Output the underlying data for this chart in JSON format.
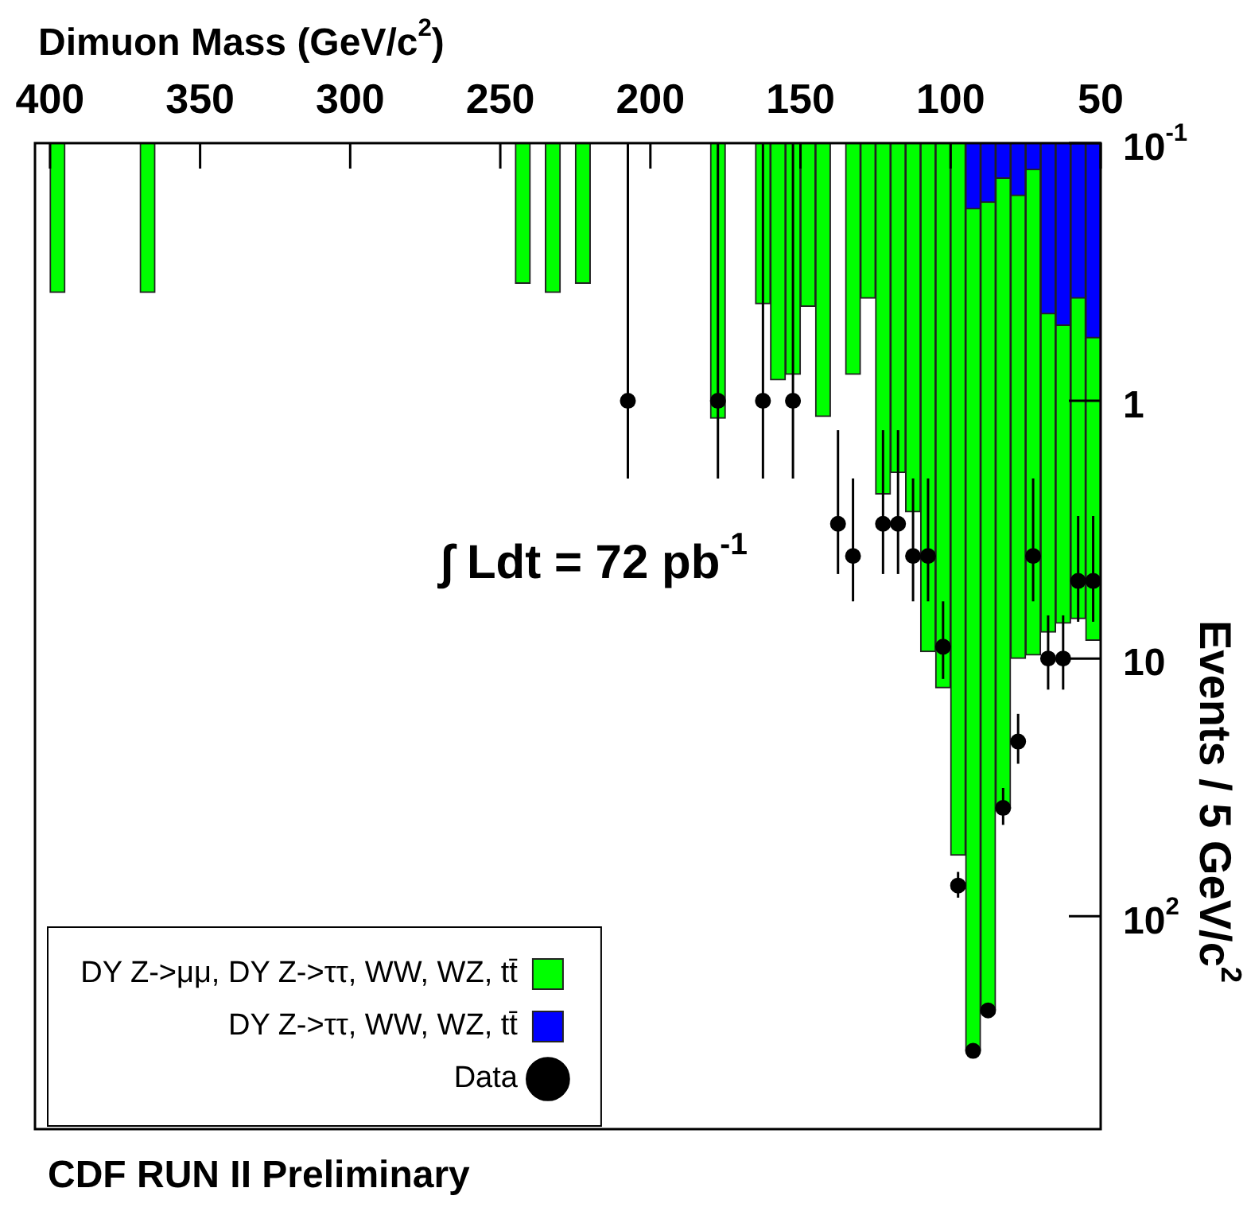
{
  "chart_data": {
    "type": "histogram",
    "title": "CDF RUN II Preliminary",
    "xlabel": "Dimuon Mass (GeV/c$^{2}$)",
    "ylabel": "Events / 5 GeV/c$^{2}$",
    "annotations": [
      "∫ Ldt = 72 pb$^{-1}$"
    ],
    "bins": [
      50,
      55,
      60,
      65,
      70,
      75,
      80,
      85,
      90,
      95,
      100,
      105,
      110,
      115,
      120,
      125,
      130,
      135,
      140,
      145,
      150,
      155,
      160,
      165,
      170,
      175,
      180,
      185,
      190,
      195,
      200,
      205,
      210,
      215,
      220,
      225,
      230,
      235,
      240,
      245,
      250,
      255,
      260,
      265,
      270,
      275,
      280,
      285,
      290,
      295,
      300,
      305,
      310,
      315,
      320,
      325,
      330,
      335,
      340,
      345,
      350,
      355,
      360,
      365,
      370,
      375,
      380,
      385,
      390,
      395,
      400,
      405
    ],
    "series": [
      {
        "name": "DY Z->μμ, DY Z->ττ, WW, WZ, tt̄",
        "color": "#00ff00",
        "values": [
          8.5,
          7,
          7.3,
          7.9,
          9.7,
          10,
          38,
          230,
          331,
          58,
          13,
          9.4,
          2.7,
          1.9,
          2.3,
          0.4,
          0.79,
          null,
          1.15,
          0.43,
          0.79,
          0.83,
          0.42,
          null,
          null,
          1.17,
          null,
          null,
          null,
          null,
          null,
          null,
          null,
          null,
          0.35,
          null,
          0.38,
          null,
          0.35,
          null,
          null,
          null,
          null,
          null,
          null,
          null,
          null,
          null,
          null,
          null,
          null,
          null,
          null,
          null,
          null,
          null,
          null,
          null,
          null,
          null,
          null,
          null,
          null,
          0.38,
          null,
          null,
          null,
          null,
          null,
          0.38,
          null
        ]
      },
      {
        "name": "DY Z->ττ, WW, WZ, tt̄",
        "color": "#0000ff",
        "values": [
          0.57,
          0.4,
          0.51,
          0.46,
          0.127,
          0.16,
          0.137,
          0.17,
          0.18,
          null,
          null,
          null,
          null,
          null,
          null,
          null,
          null,
          null,
          null,
          null,
          null,
          null,
          null,
          null,
          null,
          null,
          null,
          null,
          null,
          null,
          null,
          null,
          null,
          null,
          null,
          null,
          null,
          null,
          null,
          null,
          null,
          null,
          null,
          null,
          null,
          null,
          null,
          null,
          null,
          null,
          null,
          null,
          null,
          null,
          null,
          null,
          null,
          null,
          null,
          null,
          null,
          null,
          null,
          null,
          null,
          null,
          null,
          null,
          null,
          null,
          null
        ]
      },
      {
        "name": "Data",
        "type": "scatter",
        "color": "#000000",
        "x": [
          52.5,
          57.5,
          62.5,
          67.5,
          72.5,
          77.5,
          82.5,
          87.5,
          92.5,
          97.5,
          102.5,
          107.5,
          112.5,
          117.5,
          122.5,
          132.5,
          137.5,
          152.5,
          162.5,
          177.5,
          207.5
        ],
        "values": [
          5,
          5,
          10,
          10,
          4,
          21,
          38,
          232,
          333,
          76,
          9,
          4,
          4,
          3,
          3,
          4,
          3,
          1,
          1,
          1,
          1
        ],
        "errors": [
          2.2,
          2.2,
          3.2,
          3.2,
          2,
          4.6,
          6.2,
          15,
          18,
          8.7,
          3,
          2,
          2,
          1.7,
          1.7,
          2,
          1.7,
          [
            0.1,
            2
          ],
          [
            0.1,
            2
          ],
          [
            0.1,
            2
          ],
          [
            0.1,
            2
          ]
        ]
      }
    ],
    "xlim": [
      405,
      50
    ],
    "xticks": [
      50,
      100,
      150,
      200,
      250,
      300,
      350,
      400
    ],
    "ylim": [
      670,
      0.1
    ],
    "yticks": [
      {
        "value": 0.1,
        "label": "10$^{-1}$"
      },
      1,
      10,
      {
        "value": 100,
        "label": "10$^{2}$"
      }
    ],
    "log": "y",
    "legend": "bottom left",
    "marker": "circle"
  }
}
